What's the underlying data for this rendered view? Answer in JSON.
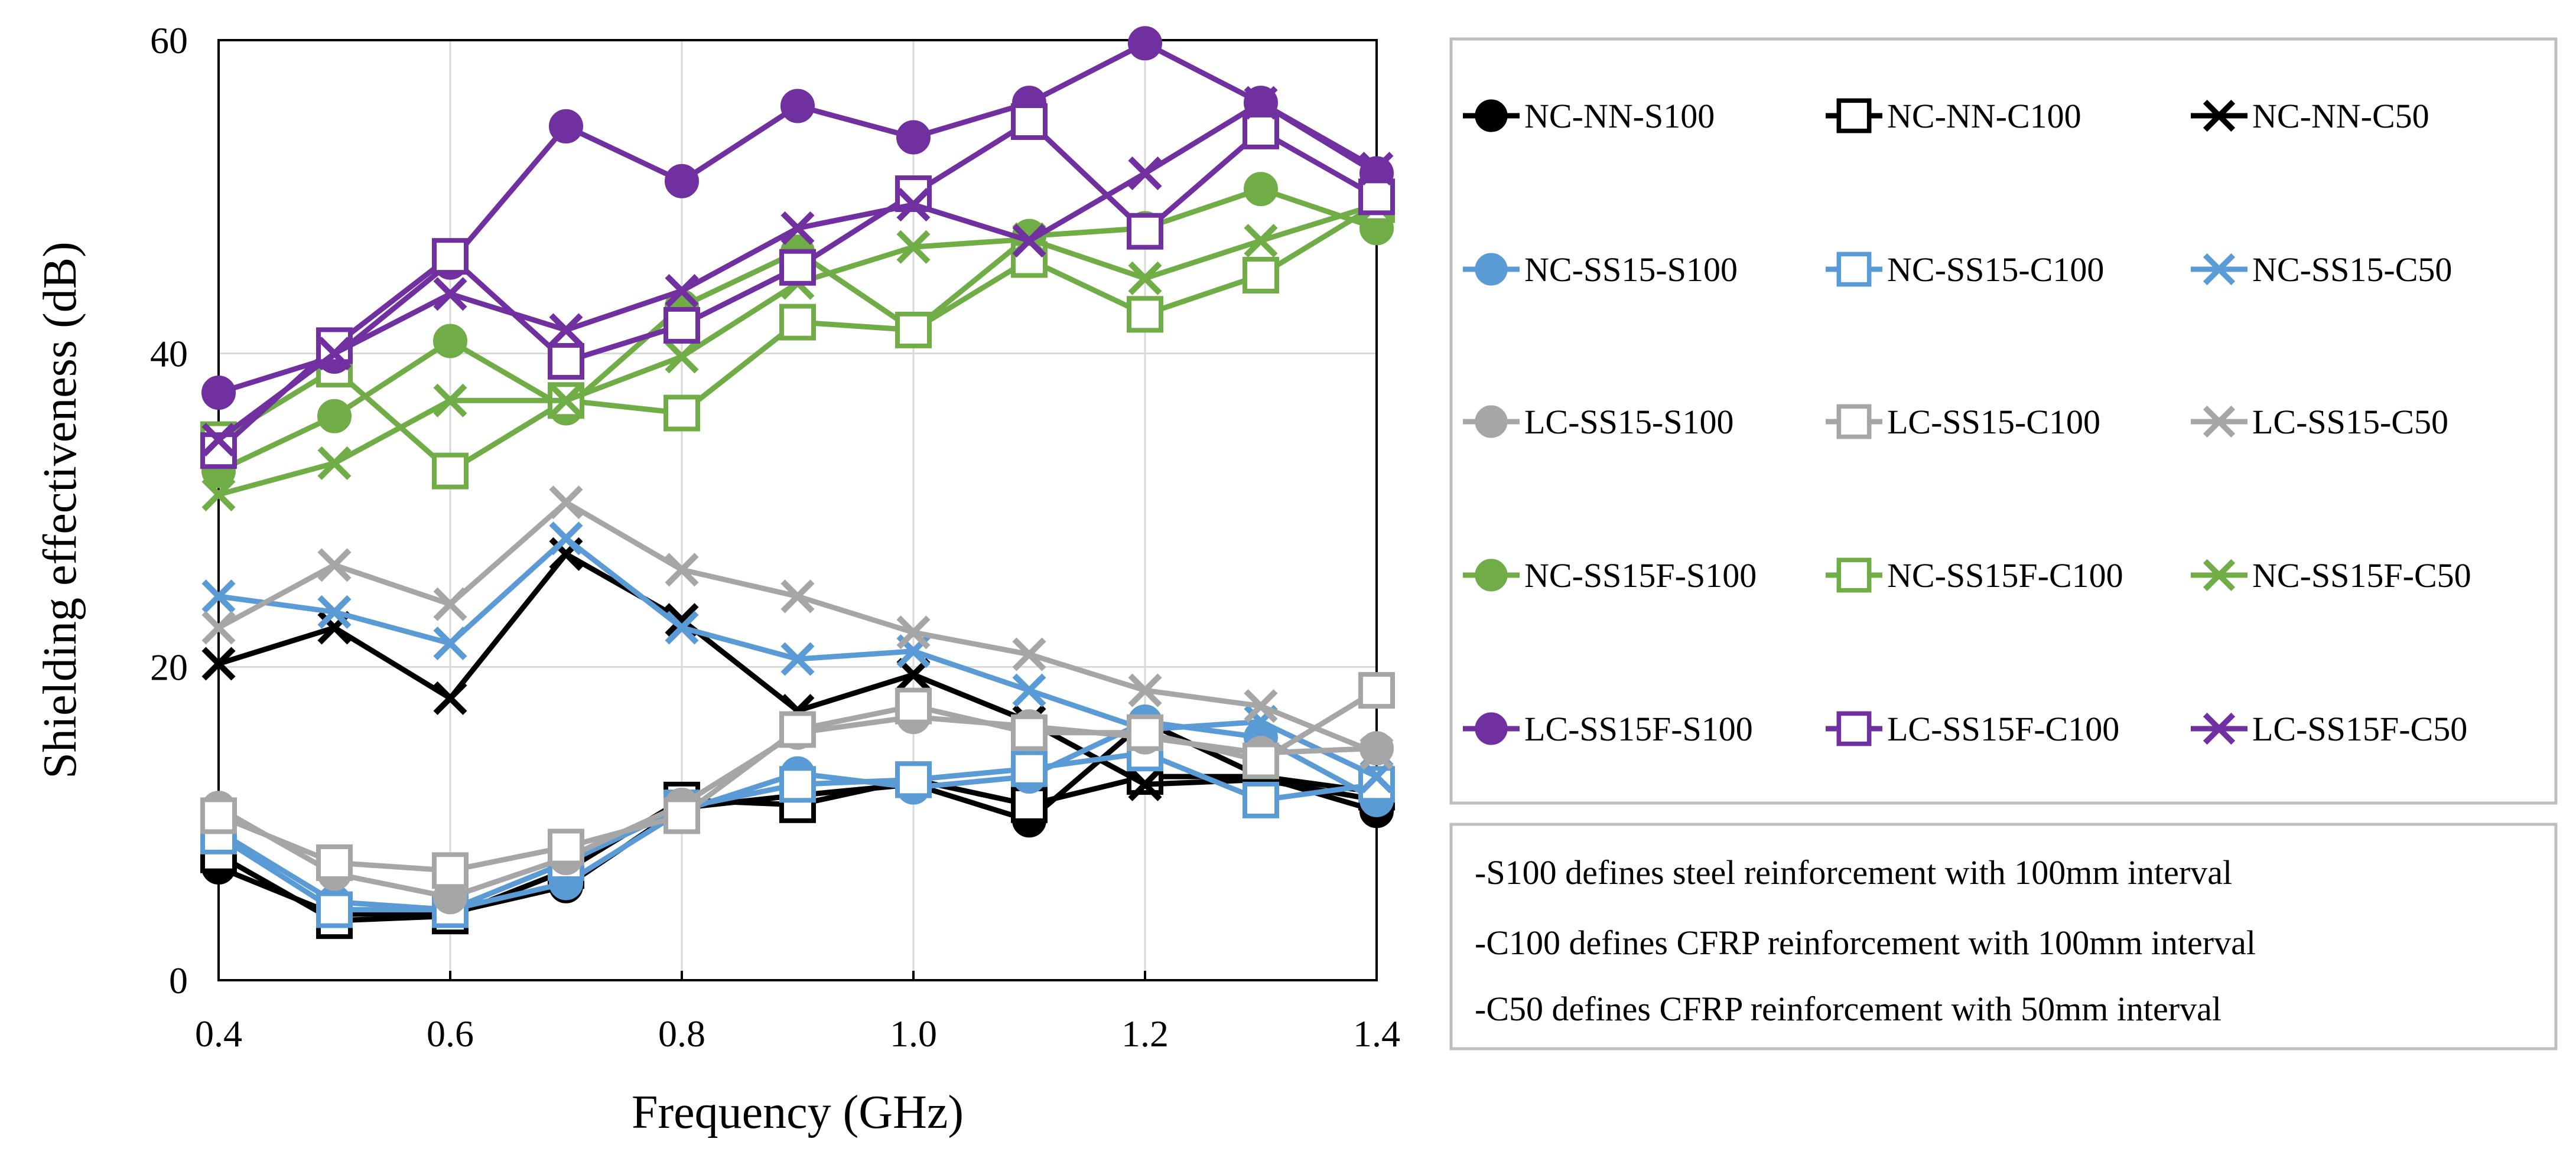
{
  "chart_data": {
    "type": "line",
    "title": "",
    "xlabel": "Frequency (GHz)",
    "ylabel": "Shielding effectiveness (dB)",
    "xlim": [
      0.4,
      1.4
    ],
    "ylim": [
      0,
      60
    ],
    "x": [
      0.4,
      0.5,
      0.6,
      0.7,
      0.8,
      0.9,
      1.0,
      1.1,
      1.2,
      1.3,
      1.4
    ],
    "x_ticks": [
      "0.4",
      "0.6",
      "0.8",
      "1.0",
      "1.2",
      "1.4"
    ],
    "y_ticks": [
      "0",
      "20",
      "40",
      "60"
    ],
    "x_tick_values": [
      0.4,
      0.6,
      0.8,
      1.0,
      1.2,
      1.4
    ],
    "y_tick_values": [
      0,
      20,
      40,
      60
    ],
    "grid": true,
    "legend_position": "right",
    "series": [
      {
        "name": "NC-NN-S100",
        "color": "#000000",
        "marker": "circle",
        "values": [
          7.2,
          4.2,
          4.3,
          6.0,
          11.0,
          11.8,
          12.5,
          10.2,
          16.5,
          13.0,
          10.8
        ]
      },
      {
        "name": "NC-NN-C100",
        "color": "#000000",
        "marker": "square",
        "values": [
          8.0,
          3.8,
          4.1,
          7.0,
          11.5,
          11.2,
          12.8,
          11.2,
          13.0,
          13.0,
          12.0
        ]
      },
      {
        "name": "NC-NN-C50",
        "color": "#000000",
        "marker": "x",
        "values": [
          20.2,
          22.5,
          18.0,
          27.2,
          23.0,
          17.2,
          19.5,
          16.5,
          12.5,
          12.8,
          11.5
        ]
      },
      {
        "name": "NC-SS15-S100",
        "color": "#5b9bd5",
        "marker": "circle",
        "values": [
          9.5,
          5.0,
          4.5,
          6.2,
          10.8,
          13.2,
          12.3,
          13.0,
          16.5,
          15.5,
          11.5
        ]
      },
      {
        "name": "NC-SS15-C100",
        "color": "#5b9bd5",
        "marker": "square",
        "values": [
          9.2,
          4.5,
          4.5,
          7.5,
          11.0,
          12.5,
          12.8,
          13.5,
          14.5,
          11.5,
          12.5
        ]
      },
      {
        "name": "NC-SS15-C50",
        "color": "#5b9bd5",
        "marker": "x",
        "values": [
          24.5,
          23.5,
          21.5,
          28.2,
          22.5,
          20.5,
          21.0,
          18.5,
          16.0,
          16.5,
          13.0
        ]
      },
      {
        "name": "LC-SS15-S100",
        "color": "#a6a6a6",
        "marker": "circle",
        "values": [
          11.0,
          6.8,
          5.3,
          7.8,
          11.2,
          15.8,
          16.8,
          16.2,
          15.5,
          14.5,
          14.8
        ]
      },
      {
        "name": "LC-SS15-C100",
        "color": "#a6a6a6",
        "marker": "square",
        "values": [
          10.5,
          7.5,
          7.0,
          8.5,
          10.5,
          16.0,
          17.5,
          15.8,
          15.8,
          14.0,
          18.5
        ]
      },
      {
        "name": "LC-SS15-C50",
        "color": "#a6a6a6",
        "marker": "x",
        "values": [
          22.5,
          26.5,
          24.0,
          30.5,
          26.2,
          24.5,
          22.2,
          20.8,
          18.5,
          17.5,
          14.5
        ]
      },
      {
        "name": "NC-SS15F-S100",
        "color": "#70ad47",
        "marker": "circle",
        "values": [
          32.5,
          36.0,
          40.8,
          36.5,
          43.0,
          46.5,
          41.5,
          47.5,
          48.0,
          50.5,
          48.0
        ]
      },
      {
        "name": "NC-SS15F-C100",
        "color": "#70ad47",
        "marker": "square",
        "values": [
          34.5,
          39.0,
          32.5,
          37.0,
          36.2,
          42.0,
          41.5,
          46.0,
          42.5,
          45.0,
          49.5
        ]
      },
      {
        "name": "NC-SS15F-C50",
        "color": "#70ad47",
        "marker": "x",
        "values": [
          31.0,
          33.0,
          37.0,
          37.0,
          39.8,
          44.5,
          46.8,
          47.3,
          44.8,
          47.2,
          49.5
        ]
      },
      {
        "name": "LC-SS15F-S100",
        "color": "#7030a0",
        "marker": "circle",
        "values": [
          37.5,
          39.8,
          45.8,
          54.5,
          51.0,
          55.8,
          53.8,
          56.0,
          59.8,
          56.0,
          51.5
        ]
      },
      {
        "name": "LC-SS15F-C100",
        "color": "#7030a0",
        "marker": "square",
        "values": [
          33.8,
          40.5,
          46.2,
          39.5,
          41.8,
          45.5,
          50.2,
          54.8,
          47.8,
          54.2,
          50.0
        ]
      },
      {
        "name": "LC-SS15F-C50",
        "color": "#7030a0",
        "marker": "x",
        "values": [
          34.5,
          40.0,
          43.8,
          41.5,
          44.0,
          48.0,
          49.5,
          47.2,
          51.5,
          56.0,
          51.8
        ]
      }
    ],
    "notes": [
      "-S100 defines steel reinforcement with 100mm interval",
      "-C100 defines CFRP reinforcement with 100mm interval",
      "-C50 defines CFRP reinforcement with 50mm interval"
    ]
  }
}
